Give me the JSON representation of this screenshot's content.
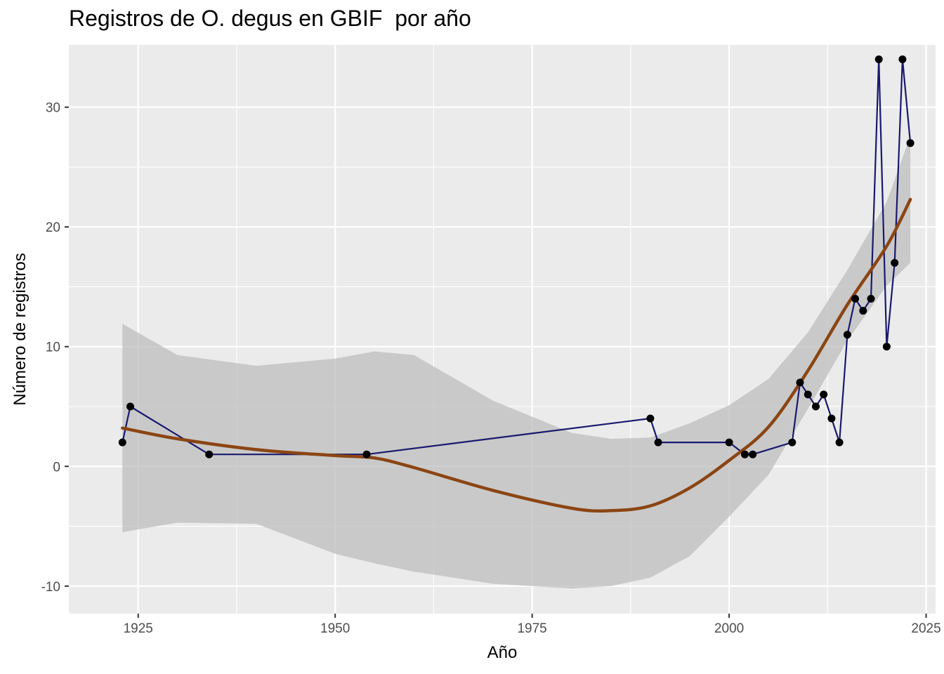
{
  "chart_data": {
    "type": "line",
    "title": "Registros de O. degus en GBIF  por año",
    "xlabel": "Año",
    "ylabel": "Número de registros",
    "xlim": [
      1916.2,
      1926.2
    ],
    "xticks": [
      1925,
      1950,
      1975,
      2000,
      2025
    ],
    "ylim": [
      -12.3,
      35.2
    ],
    "yticks": [
      -10,
      0,
      10,
      20,
      30
    ],
    "grid": true,
    "colors": {
      "panel": "#EBEBEB",
      "grid_major": "#FFFFFF",
      "line": "#191970",
      "point": "#000000",
      "smooth": "#8B4513",
      "ribbon": "#BEBEBE"
    },
    "series": [
      {
        "x": [
          1923,
          1924,
          1934,
          1954,
          1990,
          1991,
          2000,
          2002,
          2003,
          2008,
          2009,
          2010,
          2011,
          2012,
          2013,
          2014,
          2015,
          2016,
          2017,
          2018,
          2019,
          2020,
          2021,
          2022,
          2023
        ],
        "values": [
          2,
          5,
          1,
          1,
          4,
          2,
          2,
          1,
          1,
          2,
          7,
          6,
          5,
          6,
          4,
          2,
          11,
          14,
          13,
          14,
          34,
          10,
          17,
          34,
          27
        ]
      }
    ],
    "smooth": {
      "x": [
        1923,
        1930,
        1940,
        1950,
        1955,
        1960,
        1970,
        1980,
        1985,
        1990,
        1995,
        2000,
        2005,
        2010,
        2015,
        2020,
        2023
      ],
      "fit": [
        3.2,
        2.3,
        1.4,
        0.9,
        0.7,
        -0.1,
        -2.0,
        -3.5,
        -3.7,
        -3.3,
        -1.8,
        0.5,
        3.3,
        8.0,
        13.5,
        18.4,
        22.3
      ],
      "lower": [
        -5.5,
        -4.7,
        -4.8,
        -7.3,
        -8.1,
        -8.8,
        -9.8,
        -10.2,
        -10.0,
        -9.3,
        -7.5,
        -4.2,
        -0.7,
        4.8,
        10.5,
        15.1,
        17.0
      ],
      "upper": [
        11.9,
        9.3,
        8.4,
        9.0,
        9.6,
        9.3,
        5.5,
        2.8,
        2.3,
        2.4,
        3.6,
        5.1,
        7.3,
        11.2,
        16.4,
        22.1,
        27.6
      ]
    }
  }
}
